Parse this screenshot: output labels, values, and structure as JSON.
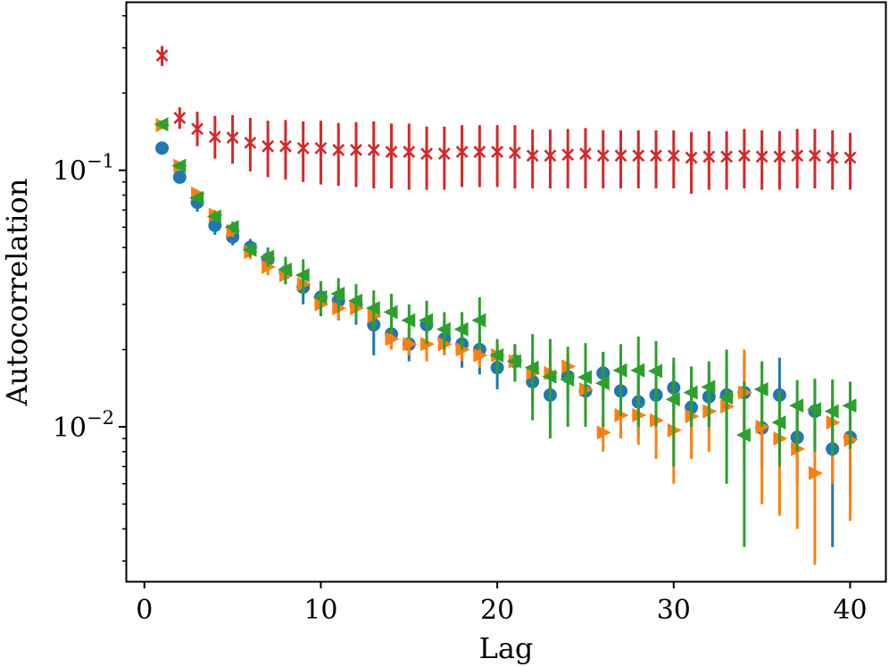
{
  "chart_data": {
    "type": "scatter",
    "title": "",
    "xlabel": "Lag",
    "ylabel": "Autocorrelation",
    "xlim": [
      -1,
      42
    ],
    "ylim": [
      0.0025,
      0.45
    ],
    "yscale": "log",
    "grid": false,
    "x_ticks": [
      {
        "value": 0,
        "label": "0"
      },
      {
        "value": 10,
        "label": "10"
      },
      {
        "value": 20,
        "label": "20"
      },
      {
        "value": 30,
        "label": "30"
      },
      {
        "value": 40,
        "label": "40"
      }
    ],
    "y_ticks": [
      {
        "value": 0.1,
        "base": "10",
        "exp": "−1"
      },
      {
        "value": 0.01,
        "base": "10",
        "exp": "−2"
      }
    ],
    "colors": {
      "blue": "#1f77b4",
      "orange": "#ff7f0e",
      "green": "#2ca02c",
      "red": "#d62728"
    },
    "series": [
      {
        "name": "blue circles",
        "marker": "circle",
        "color": "#1f77b4",
        "x": [
          1,
          2,
          3,
          4,
          5,
          6,
          7,
          8,
          9,
          10,
          11,
          12,
          13,
          14,
          15,
          16,
          17,
          18,
          19,
          20,
          21,
          22,
          23,
          24,
          25,
          26,
          27,
          28,
          29,
          30,
          31,
          32,
          33,
          34,
          35,
          36,
          37,
          38,
          39,
          40
        ],
        "values": [
          0.122,
          0.094,
          0.075,
          0.061,
          0.055,
          0.05,
          0.045,
          0.04,
          0.035,
          0.032,
          0.031,
          0.03,
          0.025,
          0.023,
          0.021,
          0.025,
          0.022,
          0.021,
          0.02,
          0.017,
          0.018,
          0.015,
          0.0133,
          0.0157,
          0.0138,
          0.0162,
          0.0138,
          0.0125,
          0.0133,
          0.0142,
          0.0119,
          0.0131,
          0.0133,
          0.0136,
          0.0099,
          0.0133,
          0.0091,
          0.0115,
          0.0082,
          0.0091
        ],
        "err_low": [
          0.119,
          0.09,
          0.069,
          0.056,
          0.051,
          0.046,
          0.041,
          0.036,
          0.03,
          0.027,
          0.026,
          0.025,
          0.019,
          0.02,
          0.018,
          0.02,
          0.019,
          0.017,
          0.016,
          0.014,
          0.015,
          0.012,
          0.011,
          0.0125,
          0.0108,
          0.0128,
          0.0106,
          0.0091,
          0.0098,
          0.0111,
          0.0087,
          0.0097,
          0.0096,
          0.0081,
          0.007,
          0.008,
          0.006,
          0.0082,
          0.0034,
          0.0055
        ],
        "err_high": [
          0.125,
          0.098,
          0.081,
          0.066,
          0.059,
          0.054,
          0.049,
          0.044,
          0.039,
          0.035,
          0.035,
          0.034,
          0.029,
          0.026,
          0.024,
          0.029,
          0.026,
          0.025,
          0.023,
          0.02,
          0.021,
          0.018,
          0.016,
          0.0189,
          0.0168,
          0.0196,
          0.017,
          0.0159,
          0.0168,
          0.0173,
          0.0151,
          0.0165,
          0.017,
          0.019,
          0.0128,
          0.0186,
          0.0122,
          0.0148,
          0.013,
          0.0127
        ]
      },
      {
        "name": "orange right triangles",
        "marker": "triangle-right",
        "color": "#ff7f0e",
        "x": [
          1,
          2,
          3,
          4,
          5,
          6,
          7,
          8,
          9,
          10,
          11,
          12,
          13,
          14,
          15,
          16,
          17,
          18,
          19,
          20,
          21,
          22,
          23,
          24,
          25,
          26,
          27,
          28,
          29,
          30,
          31,
          32,
          33,
          34,
          35,
          36,
          37,
          38,
          39,
          40
        ],
        "values": [
          0.15,
          0.104,
          0.081,
          0.067,
          0.058,
          0.048,
          0.042,
          0.039,
          0.036,
          0.03,
          0.029,
          0.029,
          0.027,
          0.022,
          0.021,
          0.021,
          0.021,
          0.02,
          0.019,
          0.019,
          0.018,
          0.0162,
          0.0162,
          0.0172,
          0.014,
          0.0095,
          0.0111,
          0.0111,
          0.0106,
          0.0097,
          0.011,
          0.0115,
          0.012,
          0.0136,
          0.01,
          0.009,
          0.0082,
          0.0066,
          0.0104,
          0.0089
        ],
        "err_low": [
          0.148,
          0.102,
          0.078,
          0.064,
          0.055,
          0.045,
          0.039,
          0.036,
          0.033,
          0.027,
          0.026,
          0.026,
          0.024,
          0.02,
          0.019,
          0.018,
          0.019,
          0.018,
          0.017,
          0.017,
          0.016,
          0.014,
          0.014,
          0.015,
          0.012,
          0.008,
          0.009,
          0.0085,
          0.0075,
          0.006,
          0.0075,
          0.008,
          0.0065,
          0.007,
          0.005,
          0.0045,
          0.004,
          0.0029,
          0.006,
          0.0043
        ],
        "err_high": [
          0.152,
          0.106,
          0.084,
          0.07,
          0.061,
          0.051,
          0.045,
          0.042,
          0.039,
          0.033,
          0.032,
          0.032,
          0.03,
          0.024,
          0.023,
          0.024,
          0.023,
          0.022,
          0.021,
          0.021,
          0.02,
          0.0184,
          0.0184,
          0.0194,
          0.016,
          0.011,
          0.0132,
          0.0137,
          0.0137,
          0.0134,
          0.0145,
          0.015,
          0.0175,
          0.02,
          0.015,
          0.0135,
          0.0125,
          0.0103,
          0.0148,
          0.0135
        ]
      },
      {
        "name": "green left triangles",
        "marker": "triangle-left",
        "color": "#2ca02c",
        "x": [
          1,
          2,
          3,
          4,
          5,
          6,
          7,
          8,
          9,
          10,
          11,
          12,
          13,
          14,
          15,
          16,
          17,
          18,
          19,
          20,
          21,
          22,
          23,
          24,
          25,
          26,
          27,
          28,
          29,
          30,
          31,
          32,
          33,
          34,
          35,
          36,
          37,
          38,
          39,
          40
        ],
        "values": [
          0.151,
          0.104,
          0.078,
          0.066,
          0.06,
          0.049,
          0.046,
          0.041,
          0.039,
          0.032,
          0.033,
          0.031,
          0.029,
          0.028,
          0.026,
          0.026,
          0.024,
          0.024,
          0.026,
          0.019,
          0.018,
          0.017,
          0.0157,
          0.0153,
          0.0156,
          0.0148,
          0.0166,
          0.0166,
          0.0165,
          0.0128,
          0.0136,
          0.0143,
          0.013,
          0.0093,
          0.014,
          0.0104,
          0.0121,
          0.0117,
          0.0115,
          0.0121
        ],
        "err_low": [
          0.149,
          0.102,
          0.075,
          0.063,
          0.057,
          0.046,
          0.042,
          0.036,
          0.033,
          0.027,
          0.028,
          0.026,
          0.024,
          0.023,
          0.022,
          0.021,
          0.02,
          0.02,
          0.02,
          0.016,
          0.015,
          0.0106,
          0.009,
          0.01,
          0.01,
          0.01,
          0.011,
          0.01,
          0.01,
          0.007,
          0.01,
          0.01,
          0.006,
          0.0034,
          0.01,
          0.007,
          0.008,
          0.008,
          0.0077,
          0.0082
        ],
        "err_high": [
          0.153,
          0.106,
          0.081,
          0.069,
          0.063,
          0.052,
          0.05,
          0.046,
          0.045,
          0.037,
          0.038,
          0.036,
          0.034,
          0.033,
          0.03,
          0.031,
          0.028,
          0.028,
          0.032,
          0.022,
          0.021,
          0.023,
          0.022,
          0.0205,
          0.0212,
          0.0196,
          0.021,
          0.0225,
          0.0216,
          0.0186,
          0.0172,
          0.018,
          0.02,
          0.015,
          0.018,
          0.0138,
          0.0152,
          0.0154,
          0.0153,
          0.015
        ]
      },
      {
        "name": "red crosses",
        "marker": "x",
        "color": "#d62728",
        "x": [
          1,
          2,
          3,
          4,
          5,
          6,
          7,
          8,
          9,
          10,
          11,
          12,
          13,
          14,
          15,
          16,
          17,
          18,
          19,
          20,
          21,
          22,
          23,
          24,
          25,
          26,
          27,
          28,
          29,
          30,
          31,
          32,
          33,
          34,
          35,
          36,
          37,
          38,
          39,
          40
        ],
        "values": [
          0.28,
          0.16,
          0.145,
          0.135,
          0.134,
          0.128,
          0.124,
          0.124,
          0.122,
          0.122,
          0.12,
          0.12,
          0.12,
          0.118,
          0.118,
          0.116,
          0.116,
          0.118,
          0.118,
          0.118,
          0.117,
          0.114,
          0.114,
          0.115,
          0.116,
          0.114,
          0.114,
          0.114,
          0.114,
          0.114,
          0.112,
          0.113,
          0.113,
          0.114,
          0.113,
          0.113,
          0.114,
          0.114,
          0.112,
          0.112
        ],
        "err_low": [
          0.255,
          0.145,
          0.124,
          0.111,
          0.106,
          0.099,
          0.094,
          0.092,
          0.09,
          0.088,
          0.087,
          0.086,
          0.085,
          0.085,
          0.084,
          0.084,
          0.084,
          0.086,
          0.086,
          0.086,
          0.085,
          0.085,
          0.085,
          0.085,
          0.085,
          0.085,
          0.085,
          0.085,
          0.085,
          0.085,
          0.081,
          0.084,
          0.084,
          0.085,
          0.084,
          0.084,
          0.085,
          0.085,
          0.084,
          0.084
        ],
        "err_high": [
          0.305,
          0.176,
          0.169,
          0.163,
          0.164,
          0.16,
          0.156,
          0.157,
          0.155,
          0.156,
          0.153,
          0.154,
          0.155,
          0.152,
          0.152,
          0.148,
          0.148,
          0.15,
          0.15,
          0.15,
          0.15,
          0.144,
          0.144,
          0.145,
          0.146,
          0.143,
          0.143,
          0.143,
          0.143,
          0.143,
          0.141,
          0.142,
          0.142,
          0.145,
          0.143,
          0.142,
          0.145,
          0.145,
          0.143,
          0.14
        ]
      }
    ]
  }
}
